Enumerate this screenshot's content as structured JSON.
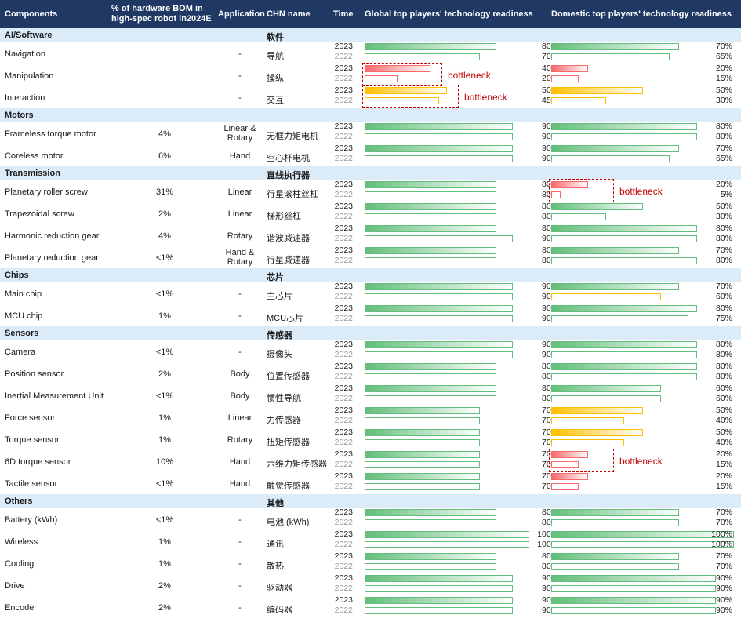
{
  "header": {
    "components": "Components",
    "bom": "% of hardware BOM in high-spec robot in2024E",
    "application": "Application",
    "chn": "CHN name",
    "time": "Time",
    "global": "Global top players' technology readiness",
    "domestic": "Domestic top players' technology readiness"
  },
  "colors": {
    "green": "#63be7b",
    "red": "#f8696b",
    "yellow": "#ffc000",
    "header_bg": "#1f3864",
    "category_bg": "#dcebf8"
  },
  "years": [
    "2023",
    "2022"
  ],
  "bottleneck_label": "bottleneck",
  "chart_data": {
    "type": "table",
    "value_unit": "%",
    "groups": [
      {
        "name": "AI/Software",
        "chn": "软件",
        "rows": [
          {
            "component": "Navigation",
            "bom": "",
            "application": "-",
            "chn": "导航",
            "global": [
              80,
              70
            ],
            "domestic": [
              70,
              65
            ],
            "global_color": "green",
            "domestic_color": "green",
            "bottleneck": ""
          },
          {
            "component": "Manipulation",
            "bom": "",
            "application": "-",
            "chn": "操纵",
            "global": [
              40,
              20
            ],
            "domestic": [
              20,
              15
            ],
            "global_color": "red",
            "domestic_color": "red",
            "bottleneck": "global"
          },
          {
            "component": "Interaction",
            "bom": "",
            "application": "-",
            "chn": "交互",
            "global": [
              50,
              45
            ],
            "domestic": [
              50,
              30
            ],
            "global_color": "yellow",
            "domestic_color": "yellow",
            "bottleneck": "global"
          }
        ]
      },
      {
        "name": "Motors",
        "chn": "",
        "rows": [
          {
            "component": "Frameless torque motor",
            "bom": "4%",
            "application": "Linear & Rotary",
            "chn": "无框力矩电机",
            "global": [
              90,
              90
            ],
            "domestic": [
              80,
              80
            ],
            "global_color": "green",
            "domestic_color": "green",
            "bottleneck": ""
          },
          {
            "component": "Coreless motor",
            "bom": "6%",
            "application": "Hand",
            "chn": "空心杯电机",
            "global": [
              90,
              90
            ],
            "domestic": [
              70,
              65
            ],
            "global_color": "green",
            "domestic_color": "green",
            "bottleneck": ""
          }
        ]
      },
      {
        "name": "Transmission",
        "chn": "直线执行器",
        "rows": [
          {
            "component": "Planetary roller screw",
            "bom": "31%",
            "application": "Linear",
            "chn": "行星滚柱丝杠",
            "global": [
              80,
              80
            ],
            "domestic": [
              20,
              5
            ],
            "global_color": "green",
            "domestic_color": "red",
            "bottleneck": "domestic"
          },
          {
            "component": "Trapezoidal screw",
            "bom": "2%",
            "application": "Linear",
            "chn": "梯形丝杠",
            "global": [
              80,
              80
            ],
            "domestic": [
              50,
              30
            ],
            "global_color": "green",
            "domestic_color": "green",
            "bottleneck": ""
          },
          {
            "component": "Harmonic reduction gear",
            "bom": "4%",
            "application": "Rotary",
            "chn": "谐波减速器",
            "global": [
              80,
              90
            ],
            "domestic": [
              80,
              80
            ],
            "global_color": "green",
            "domestic_color": "green",
            "bottleneck": ""
          },
          {
            "component": "Planetary reduction gear",
            "bom": "<1%",
            "application": "Hand & Rotary",
            "chn": "行星减速器",
            "global": [
              80,
              80
            ],
            "domestic": [
              70,
              80
            ],
            "global_color": "green",
            "domestic_color": "green",
            "bottleneck": ""
          }
        ]
      },
      {
        "name": "Chips",
        "chn": "芯片",
        "rows": [
          {
            "component": "Main chip",
            "bom": "<1%",
            "application": "-",
            "chn": "主芯片",
            "global": [
              90,
              90
            ],
            "domestic": [
              70,
              60
            ],
            "global_color": "green",
            "domestic_color": "green",
            "domestic_2022_color": "yellow",
            "bottleneck": ""
          },
          {
            "component": "MCU chip",
            "bom": "1%",
            "application": "-",
            "chn": "MCU芯片",
            "global": [
              90,
              90
            ],
            "domestic": [
              80,
              75
            ],
            "global_color": "green",
            "domestic_color": "green",
            "bottleneck": ""
          }
        ]
      },
      {
        "name": "Sensors",
        "chn": "传感器",
        "rows": [
          {
            "component": "Camera",
            "bom": "<1%",
            "application": "-",
            "chn": "摄像头",
            "global": [
              90,
              90
            ],
            "domestic": [
              80,
              80
            ],
            "global_color": "green",
            "domestic_color": "green",
            "bottleneck": ""
          },
          {
            "component": "Position sensor",
            "bom": "2%",
            "application": "Body",
            "chn": "位置传感器",
            "global": [
              80,
              80
            ],
            "domestic": [
              80,
              80
            ],
            "global_color": "green",
            "domestic_color": "green",
            "bottleneck": ""
          },
          {
            "component": "Inertial Measurement Unit",
            "bom": "<1%",
            "application": "Body",
            "chn": "惯性导航",
            "global": [
              80,
              80
            ],
            "domestic": [
              60,
              60
            ],
            "global_color": "green",
            "domestic_color": "green",
            "bottleneck": ""
          },
          {
            "component": "Force sensor",
            "bom": "1%",
            "application": "Linear",
            "chn": "力传感器",
            "global": [
              70,
              70
            ],
            "domestic": [
              50,
              40
            ],
            "global_color": "green",
            "domestic_color": "yellow",
            "bottleneck": ""
          },
          {
            "component": "Torque sensor",
            "bom": "1%",
            "application": "Rotary",
            "chn": "扭矩传感器",
            "global": [
              70,
              70
            ],
            "domestic": [
              50,
              40
            ],
            "global_color": "green",
            "domestic_color": "yellow",
            "bottleneck": ""
          },
          {
            "component": "6D torque sensor",
            "bom": "10%",
            "application": "Hand",
            "chn": "六维力矩传感器",
            "global": [
              70,
              70
            ],
            "domestic": [
              20,
              15
            ],
            "global_color": "green",
            "domestic_color": "red",
            "bottleneck": "domestic"
          },
          {
            "component": "Tactile sensor",
            "bom": "<1%",
            "application": "Hand",
            "chn": "触觉传感器",
            "global": [
              70,
              70
            ],
            "domestic": [
              20,
              15
            ],
            "global_color": "green",
            "domestic_color": "red",
            "bottleneck": ""
          }
        ]
      },
      {
        "name": "Others",
        "chn": "其他",
        "rows": [
          {
            "component": "Battery (kWh)",
            "bom": "<1%",
            "application": "-",
            "chn": "电池 (kWh)",
            "global": [
              80,
              80
            ],
            "domestic": [
              70,
              70
            ],
            "global_color": "green",
            "domestic_color": "green",
            "bottleneck": ""
          },
          {
            "component": "Wireless",
            "bom": "1%",
            "application": "-",
            "chn": "通讯",
            "global": [
              100,
              100
            ],
            "domestic": [
              100,
              100
            ],
            "global_color": "green",
            "domestic_color": "green",
            "bottleneck": ""
          },
          {
            "component": "Cooling",
            "bom": "1%",
            "application": "-",
            "chn": "散热",
            "global": [
              80,
              80
            ],
            "domestic": [
              70,
              70
            ],
            "global_color": "green",
            "domestic_color": "green",
            "bottleneck": ""
          },
          {
            "component": "Drive",
            "bom": "2%",
            "application": "-",
            "chn": "驱动器",
            "global": [
              90,
              90
            ],
            "domestic": [
              90,
              90
            ],
            "global_color": "green",
            "domestic_color": "green",
            "bottleneck": ""
          },
          {
            "component": "Encoder",
            "bom": "2%",
            "application": "-",
            "chn": "编码器",
            "global": [
              90,
              90
            ],
            "domestic": [
              90,
              90
            ],
            "global_color": "green",
            "domestic_color": "green",
            "bottleneck": ""
          }
        ]
      }
    ]
  }
}
